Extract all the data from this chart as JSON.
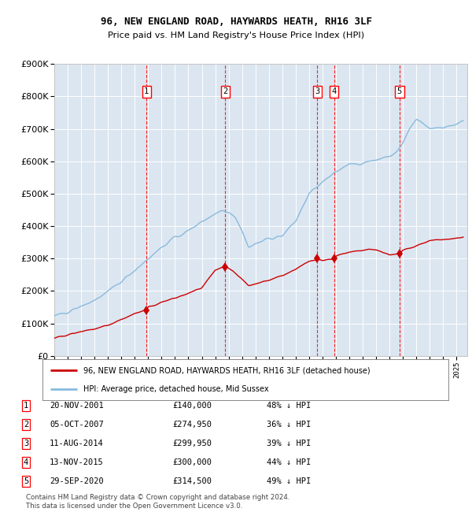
{
  "title": "96, NEW ENGLAND ROAD, HAYWARDS HEATH, RH16 3LF",
  "subtitle": "Price paid vs. HM Land Registry's House Price Index (HPI)",
  "plot_bg_color": "#dce6f1",
  "hpi_color": "#88bbdd",
  "price_color": "#cc0000",
  "ylim": [
    0,
    900000
  ],
  "yticks": [
    0,
    100000,
    200000,
    300000,
    400000,
    500000,
    600000,
    700000,
    800000,
    900000
  ],
  "xlim_start": 1995.0,
  "xlim_end": 2025.8,
  "transactions": [
    {
      "num": 1,
      "date": "20-NOV-2001",
      "year": 2001.88,
      "price": 140000,
      "label": "48% ↓ HPI"
    },
    {
      "num": 2,
      "date": "05-OCT-2007",
      "year": 2007.76,
      "price": 274950,
      "label": "36% ↓ HPI"
    },
    {
      "num": 3,
      "date": "11-AUG-2014",
      "year": 2014.61,
      "price": 299950,
      "label": "39% ↓ HPI"
    },
    {
      "num": 4,
      "date": "13-NOV-2015",
      "year": 2015.87,
      "price": 300000,
      "label": "44% ↓ HPI"
    },
    {
      "num": 5,
      "date": "29-SEP-2020",
      "year": 2020.75,
      "price": 314500,
      "label": "49% ↓ HPI"
    }
  ],
  "legend_label1": "96, NEW ENGLAND ROAD, HAYWARDS HEATH, RH16 3LF (detached house)",
  "legend_label2": "HPI: Average price, detached house, Mid Sussex",
  "footer1": "Contains HM Land Registry data © Crown copyright and database right 2024.",
  "footer2": "This data is licensed under the Open Government Licence v3.0."
}
